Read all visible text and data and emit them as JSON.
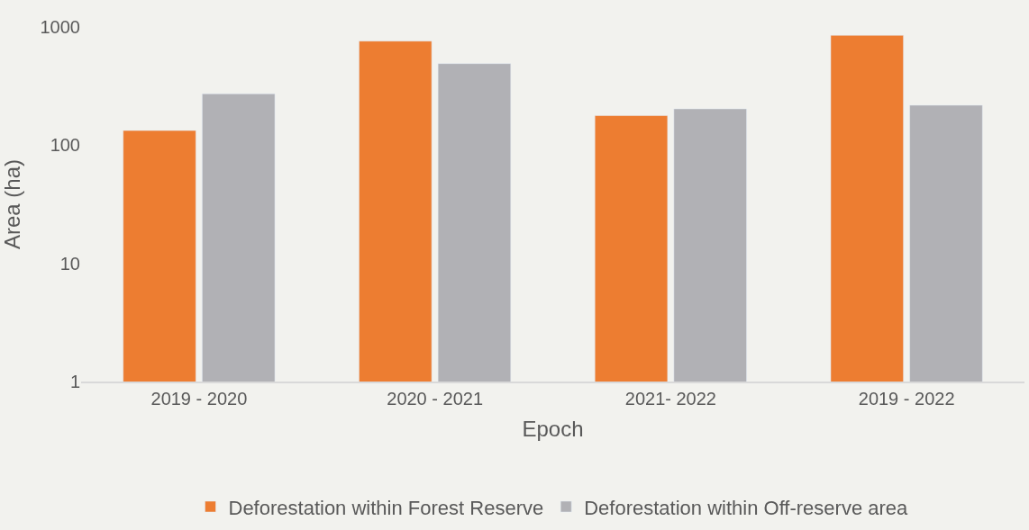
{
  "chart_data": {
    "type": "bar",
    "xlabel": "Epoch",
    "ylabel": "Area (ha)",
    "categories": [
      "2019 - 2020",
      "2020 - 2021",
      "2021- 2022",
      "2019 - 2022"
    ],
    "series": [
      {
        "name": "Deforestation within Forest Reserve",
        "color": "#ed7d31",
        "values": [
          133,
          760,
          178,
          850
        ]
      },
      {
        "name": "Deforestation within Off-reserve area",
        "color": "#b1b1b5",
        "values": [
          272,
          490,
          203,
          218
        ]
      }
    ],
    "log": "y",
    "ylim": [
      1,
      1000
    ],
    "yticks": [
      1,
      10,
      100,
      1000
    ],
    "grid": false,
    "legend": "bottom"
  }
}
